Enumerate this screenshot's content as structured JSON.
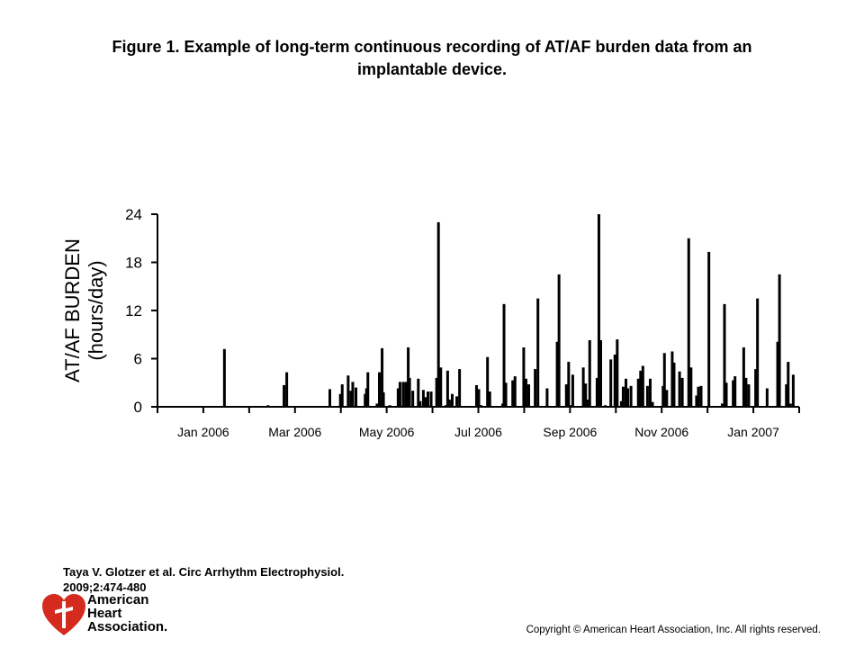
{
  "title_line1": "Figure 1. Example of long-term continuous recording of AT/AF burden data from an",
  "title_line2": "implantable device.",
  "citation_line1": "Taya V. Glotzer et al. Circ Arrhythm Electrophysiol.",
  "citation_line2": "2009;2:474-480",
  "logo": {
    "line1": "American",
    "line2": "Heart",
    "line3": "Association."
  },
  "copyright": "Copyright © American Heart Association, Inc. All rights reserved.",
  "colors": {
    "bars": "#000000",
    "logo": "#d52b1e"
  },
  "chart_data": {
    "type": "bar",
    "title": "",
    "ylabel_line1": "AT/AF BURDEN",
    "ylabel_line2": "(hours/day)",
    "xlabel": "",
    "x_unit": "months since Dec 2005",
    "xlim": [
      0,
      14
    ],
    "ylim": [
      0,
      24
    ],
    "yticks": [
      "0",
      "6",
      "12",
      "18",
      "24"
    ],
    "xtick_labels": [
      {
        "x": 1,
        "label": "Jan 2006"
      },
      {
        "x": 3,
        "label": "Mar 2006"
      },
      {
        "x": 5,
        "label": "May 2006"
      },
      {
        "x": 7,
        "label": "Jul 2006"
      },
      {
        "x": 9,
        "label": "Sep 2006"
      },
      {
        "x": 11,
        "label": "Nov 2006"
      },
      {
        "x": 13,
        "label": "Jan 2007"
      }
    ],
    "grid": false,
    "bars": [
      [
        1.46,
        7.2
      ],
      [
        2.41,
        0.2
      ],
      [
        2.76,
        2.7
      ],
      [
        2.82,
        4.3
      ],
      [
        3.76,
        2.2
      ],
      [
        3.99,
        1.6
      ],
      [
        4.03,
        2.8
      ],
      [
        4.16,
        3.9
      ],
      [
        4.22,
        2.0
      ],
      [
        4.26,
        3.1
      ],
      [
        4.33,
        2.4
      ],
      [
        4.53,
        1.6
      ],
      [
        4.56,
        2.3
      ],
      [
        4.59,
        4.3
      ],
      [
        4.79,
        0.4
      ],
      [
        4.84,
        4.3
      ],
      [
        4.9,
        7.3
      ],
      [
        4.93,
        1.8
      ],
      [
        5.07,
        0.2
      ],
      [
        5.25,
        2.3
      ],
      [
        5.29,
        3.1
      ],
      [
        5.36,
        3.1
      ],
      [
        5.42,
        3.1
      ],
      [
        5.47,
        7.4
      ],
      [
        5.5,
        3.6
      ],
      [
        5.57,
        2.0
      ],
      [
        5.69,
        3.5
      ],
      [
        5.73,
        0.7
      ],
      [
        5.8,
        2.1
      ],
      [
        5.85,
        1.2
      ],
      [
        5.9,
        1.9
      ],
      [
        5.97,
        1.9
      ],
      [
        6.09,
        3.6
      ],
      [
        6.13,
        23.0
      ],
      [
        6.18,
        4.9
      ],
      [
        6.29,
        0.2
      ],
      [
        6.33,
        4.5
      ],
      [
        6.37,
        0.9
      ],
      [
        6.43,
        1.6
      ],
      [
        6.53,
        1.3
      ],
      [
        6.59,
        4.7
      ],
      [
        6.96,
        2.7
      ],
      [
        7.01,
        2.2
      ],
      [
        7.06,
        0.2
      ],
      [
        7.2,
        6.2
      ],
      [
        7.25,
        1.9
      ],
      [
        7.53,
        0.4
      ],
      [
        7.56,
        12.8
      ],
      [
        7.6,
        3.0
      ],
      [
        7.75,
        3.3
      ],
      [
        7.8,
        3.8
      ],
      [
        7.99,
        7.4
      ],
      [
        8.04,
        3.5
      ],
      [
        8.1,
        2.8
      ],
      [
        8.24,
        4.7
      ],
      [
        8.3,
        13.5
      ],
      [
        8.5,
        2.3
      ],
      [
        8.72,
        8.1
      ],
      [
        8.76,
        16.5
      ],
      [
        8.92,
        2.8
      ],
      [
        8.97,
        5.6
      ],
      [
        9.02,
        0.2
      ],
      [
        9.06,
        4.0
      ],
      [
        9.29,
        4.9
      ],
      [
        9.34,
        2.9
      ],
      [
        9.38,
        0.9
      ],
      [
        9.43,
        8.3
      ],
      [
        9.59,
        3.6
      ],
      [
        9.63,
        24.0
      ],
      [
        9.67,
        8.3
      ],
      [
        9.77,
        0.2
      ],
      [
        9.89,
        5.9
      ],
      [
        9.98,
        6.5
      ],
      [
        10.03,
        8.4
      ],
      [
        10.12,
        0.7
      ],
      [
        10.16,
        2.5
      ],
      [
        10.22,
        3.5
      ],
      [
        10.26,
        2.3
      ],
      [
        10.33,
        2.6
      ],
      [
        10.49,
        3.5
      ],
      [
        10.54,
        4.5
      ],
      [
        10.59,
        5.1
      ],
      [
        10.69,
        2.6
      ],
      [
        10.75,
        3.5
      ],
      [
        10.8,
        0.6
      ],
      [
        11.03,
        2.6
      ],
      [
        11.06,
        6.7
      ],
      [
        11.11,
        2.1
      ],
      [
        11.23,
        6.9
      ],
      [
        11.27,
        5.5
      ],
      [
        11.39,
        4.4
      ],
      [
        11.45,
        3.6
      ],
      [
        11.59,
        21.0
      ],
      [
        11.64,
        4.9
      ],
      [
        11.76,
        1.4
      ],
      [
        11.8,
        2.5
      ],
      [
        11.86,
        2.6
      ],
      [
        12.03,
        19.3
      ],
      [
        12.32,
        0.4
      ],
      [
        12.37,
        12.8
      ],
      [
        12.41,
        3.0
      ],
      [
        12.56,
        3.3
      ],
      [
        12.6,
        3.8
      ],
      [
        12.79,
        7.4
      ],
      [
        12.84,
        3.6
      ],
      [
        12.9,
        2.8
      ],
      [
        13.05,
        4.7
      ],
      [
        13.09,
        13.5
      ],
      [
        13.3,
        2.3
      ],
      [
        13.53,
        8.1
      ],
      [
        13.57,
        16.5
      ],
      [
        13.72,
        2.8
      ],
      [
        13.76,
        5.6
      ],
      [
        13.81,
        0.4
      ],
      [
        13.87,
        4.0
      ]
    ]
  }
}
